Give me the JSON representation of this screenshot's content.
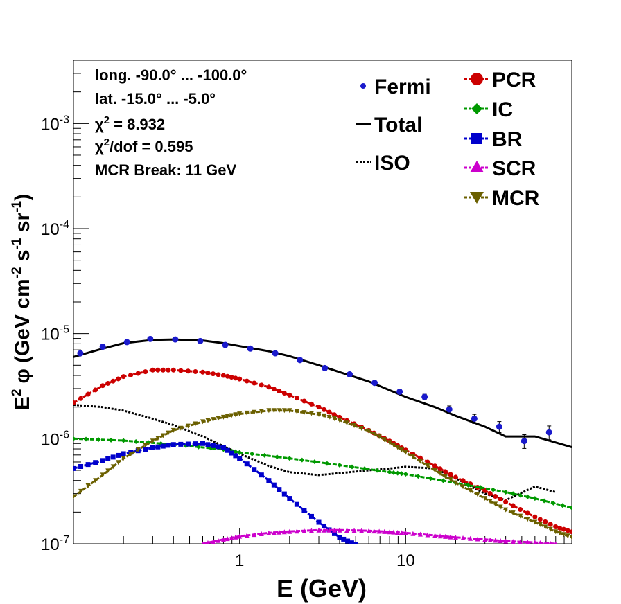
{
  "chart_data": {
    "type": "line",
    "title": "",
    "xlabel": "E (GeV)",
    "ylabel_parts": {
      "e": "E",
      "e_sup": "2",
      "phi": "φ",
      "gev_cm": "(GeV cm",
      "cm_sup": "-2",
      "s": " s",
      "s_sup": "-1",
      "sr": " sr",
      "sr_sup": "-1",
      "close": ")"
    },
    "xscale": "log",
    "yscale": "log",
    "xlim": [
      0.1,
      100
    ],
    "ylim": [
      1e-07,
      0.004
    ],
    "x_ticklabels": [
      {
        "value": 1,
        "text": "1"
      },
      {
        "value": 10,
        "text": "10"
      }
    ],
    "y_ticklabels": [
      {
        "value": 1e-07,
        "base": "10",
        "exp": "-7"
      },
      {
        "value": 1e-06,
        "base": "10",
        "exp": "-6"
      },
      {
        "value": 1e-05,
        "base": "10",
        "exp": "-5"
      },
      {
        "value": 0.0001,
        "base": "10",
        "exp": "-4"
      },
      {
        "value": 0.001,
        "base": "10",
        "exp": "-3"
      }
    ],
    "grid": false,
    "legend_placement": "top-right",
    "info_lines": [
      {
        "text": "long. -90.0° ... -100.0°"
      },
      {
        "text": "lat. -15.0° ... -5.0°"
      },
      {
        "pre": "χ",
        "sup": "2",
        "post": " = 8.932"
      },
      {
        "pre": "χ",
        "sup": "2",
        "post": "/dof = 0.595"
      },
      {
        "text": "MCR Break: 11 GeV"
      }
    ],
    "fermi": {
      "name": "Fermi",
      "color": "#1a1acc",
      "x": [
        0.11,
        0.15,
        0.21,
        0.29,
        0.41,
        0.58,
        0.82,
        1.16,
        1.64,
        2.31,
        3.26,
        4.6,
        6.5,
        9.2,
        13.0,
        18.3,
        25.9,
        36.6,
        51.7,
        73.0,
        103
      ],
      "y": [
        6.5e-06,
        7.5e-06,
        8.3e-06,
        8.9e-06,
        8.8e-06,
        8.5e-06,
        7.8e-06,
        7.2e-06,
        6.5e-06,
        5.6e-06,
        4.7e-06,
        4.1e-06,
        3.4e-06,
        2.8e-06,
        2.5e-06,
        1.9e-06,
        1.55e-06,
        1.3e-06,
        9.5e-07,
        1.15e-06,
        1e-06
      ],
      "yerr_frac": [
        0.02,
        0.02,
        0.02,
        0.02,
        0.02,
        0.02,
        0.02,
        0.02,
        0.03,
        0.03,
        0.03,
        0.04,
        0.04,
        0.05,
        0.06,
        0.08,
        0.1,
        0.12,
        0.15,
        0.15,
        0.2
      ]
    },
    "series": [
      {
        "name": "Total",
        "color": "#000000",
        "style": "solid",
        "marker": "none",
        "x": [
          0.1,
          0.15,
          0.2,
          0.3,
          0.4,
          0.6,
          0.8,
          1.0,
          1.5,
          2.0,
          3.0,
          4.0,
          6.0,
          8.0,
          10,
          15,
          20,
          30,
          40,
          60,
          80,
          100
        ],
        "y": [
          6e-06,
          7.2e-06,
          8.1e-06,
          8.7e-06,
          8.8e-06,
          8.6e-06,
          8.1e-06,
          7.6e-06,
          6.8e-06,
          6.1e-06,
          5e-06,
          4.3e-06,
          3.5e-06,
          2.9e-06,
          2.5e-06,
          2e-06,
          1.65e-06,
          1.3e-06,
          1.05e-06,
          1.05e-06,
          9.2e-07,
          8.3e-07
        ]
      },
      {
        "name": "ISO",
        "color": "#000000",
        "style": "dotted",
        "marker": "none",
        "x": [
          0.1,
          0.15,
          0.2,
          0.3,
          0.4,
          0.6,
          0.8,
          1.0,
          1.5,
          2.0,
          3.0,
          4.0,
          6.0,
          8.0,
          10,
          15,
          20,
          30,
          40,
          60,
          80
        ],
        "y": [
          2.1e-06,
          2e-06,
          1.85e-06,
          1.55e-06,
          1.35e-06,
          1.05e-06,
          8.5e-07,
          7.2e-07,
          5.5e-07,
          4.8e-07,
          4.5e-07,
          4.7e-07,
          5e-07,
          5.2e-07,
          5.4e-07,
          5.2e-07,
          4.2e-07,
          3e-07,
          2.6e-07,
          3.5e-07,
          3.1e-07
        ]
      },
      {
        "name": "PCR",
        "color": "#cc0000",
        "style": "dashed",
        "marker": "circle",
        "x": [
          0.1,
          0.15,
          0.2,
          0.3,
          0.4,
          0.6,
          0.8,
          1.0,
          1.5,
          2.0,
          3.0,
          4.0,
          6.0,
          8.0,
          10,
          15,
          20,
          30,
          40,
          60,
          80,
          100
        ],
        "y": [
          2.2e-06,
          3.2e-06,
          3.9e-06,
          4.5e-06,
          4.5e-06,
          4.3e-06,
          4e-06,
          3.7e-06,
          3.1e-06,
          2.6e-06,
          2e-06,
          1.6e-06,
          1.2e-06,
          9.5e-07,
          7.8e-07,
          5.5e-07,
          4.3e-07,
          3.2e-07,
          2.5e-07,
          1.8e-07,
          1.45e-07,
          1.3e-07
        ]
      },
      {
        "name": "IC",
        "color": "#009900",
        "style": "dashed",
        "marker": "diamond",
        "x": [
          0.1,
          0.2,
          0.4,
          0.8,
          1.0,
          2.0,
          4.0,
          8.0,
          10,
          20,
          40,
          60,
          100
        ],
        "y": [
          1e-06,
          9.6e-07,
          8.8e-07,
          7.9e-07,
          7.4e-07,
          6.5e-07,
          5.6e-07,
          4.8e-07,
          4.6e-07,
          3.8e-07,
          3.1e-07,
          2.7e-07,
          2.2e-07
        ]
      },
      {
        "name": "BR",
        "color": "#0000cc",
        "style": "dashed",
        "marker": "square",
        "x": [
          0.1,
          0.15,
          0.2,
          0.3,
          0.4,
          0.6,
          0.8,
          1.0,
          1.5,
          2.0,
          3.0,
          4.0,
          5.0
        ],
        "y": [
          5.2e-07,
          6.2e-07,
          7.2e-07,
          8.2e-07,
          8.8e-07,
          9e-07,
          8.2e-07,
          6.5e-07,
          4e-07,
          2.7e-07,
          1.6e-07,
          1.15e-07,
          9.8e-08
        ]
      },
      {
        "name": "SCR",
        "color": "#cc00cc",
        "style": "dashed",
        "marker": "triangle-up",
        "x": [
          0.6,
          0.8,
          1.0,
          1.5,
          2.0,
          3.0,
          4.0,
          6.0,
          8.0,
          10,
          15,
          20,
          30,
          40,
          60,
          80
        ],
        "y": [
          1e-07,
          1.1e-07,
          1.18e-07,
          1.27e-07,
          1.31e-07,
          1.35e-07,
          1.35e-07,
          1.33e-07,
          1.3e-07,
          1.27e-07,
          1.2e-07,
          1.15e-07,
          1.1e-07,
          1.06e-07,
          1.03e-07,
          1e-07
        ]
      },
      {
        "name": "MCR",
        "color": "#6b6000",
        "style": "dashed",
        "marker": "triangle-down",
        "x": [
          0.1,
          0.15,
          0.2,
          0.3,
          0.4,
          0.6,
          0.8,
          1.0,
          1.5,
          2.0,
          3.0,
          4.0,
          6.0,
          8.0,
          10,
          15,
          20,
          30,
          40,
          60,
          80,
          100
        ],
        "y": [
          2.8e-07,
          4.5e-07,
          6.5e-07,
          9.5e-07,
          1.2e-06,
          1.45e-06,
          1.6e-06,
          1.72e-06,
          1.85e-06,
          1.85e-06,
          1.7e-06,
          1.5e-06,
          1.18e-06,
          9.2e-07,
          7.4e-07,
          5e-07,
          3.8e-07,
          2.7e-07,
          2.1e-07,
          1.6e-07,
          1.3e-07,
          1.15e-07
        ]
      }
    ]
  }
}
